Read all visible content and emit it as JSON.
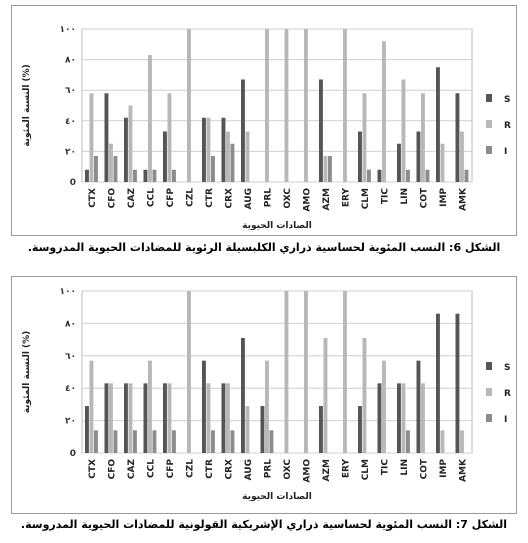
{
  "figure1": {
    "caption": "الشكل 6: النسب المئوية لحساسية ذراري الكلبسيلة الرئوية للمضادات الحيوية المدروسة.",
    "chart_data": {
      "type": "bar",
      "categories": [
        "CTX",
        "CFO",
        "CAZ",
        "CCL",
        "CFP",
        "CZL",
        "CTR",
        "CRX",
        "AUG",
        "PRL",
        "OXC",
        "AMO",
        "AZM",
        "ERY",
        "CLM",
        "TIC",
        "LIN",
        "COT",
        "IMP",
        "AMK"
      ],
      "series": [
        {
          "name": "S",
          "color": "#555555",
          "values": [
            8,
            58,
            42,
            8,
            33,
            0,
            42,
            42,
            67,
            0,
            0,
            0,
            67,
            0,
            33,
            8,
            25,
            33,
            75,
            58
          ]
        },
        {
          "name": "R",
          "color": "#b8b8b8",
          "values": [
            58,
            25,
            50,
            83,
            58,
            100,
            42,
            33,
            33,
            100,
            100,
            100,
            17,
            100,
            58,
            92,
            67,
            58,
            25,
            33
          ]
        },
        {
          "name": "I",
          "color": "#8c8c8c",
          "values": [
            17,
            17,
            8,
            8,
            8,
            0,
            17,
            25,
            0,
            0,
            0,
            0,
            17,
            0,
            8,
            0,
            8,
            8,
            0,
            8
          ]
        }
      ],
      "ytick_labels": [
        "0",
        "٢٠",
        "٤٠",
        "٦٠",
        "٨٠",
        "١٠٠"
      ],
      "ylim": [
        0,
        100
      ],
      "xlabel": "الصادات الحيوية",
      "ylabel": "النسبة المئوية (%)",
      "legend": "right",
      "grid": true
    }
  },
  "figure2": {
    "caption": "الشكل 7: النسب المئوية لحساسية ذراري الإشريكية القولونية للمضادات الحيوية المدروسة.",
    "chart_data": {
      "type": "bar",
      "categories": [
        "CTX",
        "CFO",
        "CAZ",
        "CCL",
        "CFP",
        "CZL",
        "CTR",
        "CRX",
        "AUG",
        "PRL",
        "OXC",
        "AMO",
        "AZM",
        "ERY",
        "CLM",
        "TIC",
        "LIN",
        "COT",
        "IMP",
        "AMK"
      ],
      "series": [
        {
          "name": "S",
          "color": "#555555",
          "values": [
            29,
            43,
            43,
            43,
            43,
            0,
            57,
            43,
            71,
            29,
            0,
            0,
            29,
            0,
            29,
            43,
            43,
            57,
            86,
            86
          ]
        },
        {
          "name": "R",
          "color": "#b8b8b8",
          "values": [
            57,
            43,
            43,
            57,
            43,
            100,
            43,
            43,
            29,
            57,
            100,
            100,
            71,
            100,
            71,
            57,
            43,
            43,
            14,
            14
          ]
        },
        {
          "name": "I",
          "color": "#8c8c8c",
          "values": [
            14,
            14,
            14,
            14,
            14,
            0,
            14,
            14,
            0,
            14,
            0,
            0,
            0,
            0,
            0,
            0,
            14,
            0,
            0,
            0
          ]
        }
      ],
      "ytick_labels": [
        "0",
        "٢٠",
        "٤٠",
        "٦٠",
        "٨٠",
        "١٠٠"
      ],
      "ylim": [
        0,
        100
      ],
      "xlabel": "الصادات الحيوية",
      "ylabel": "النسبة المئوية (%)",
      "legend": "right",
      "grid": true
    }
  }
}
